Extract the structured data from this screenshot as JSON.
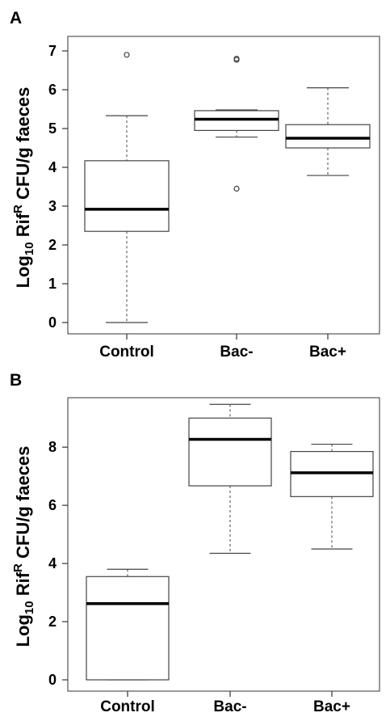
{
  "chart_data": [
    {
      "panel": "A",
      "type": "box",
      "ylabel": {
        "pre": "Log",
        "sub": "10",
        "mid": " Rif",
        "sup": "R",
        "post": " CFU/g faeces"
      },
      "xlabel": "",
      "ylim": [
        0,
        7
      ],
      "yticks": [
        "0",
        "1",
        "2",
        "3",
        "4",
        "5",
        "6",
        "7"
      ],
      "categories": [
        "Control",
        "Bac-",
        "Bac+"
      ],
      "boxes": [
        {
          "category": "Control",
          "whisker_low": 0.0,
          "q1": 2.35,
          "median": 2.92,
          "q3": 4.17,
          "whisker_high": 5.33,
          "outliers": [
            6.9
          ]
        },
        {
          "category": "Bac-",
          "whisker_low": 4.78,
          "q1": 4.95,
          "median": 5.24,
          "q3": 5.46,
          "whisker_high": 5.48,
          "outliers": [
            6.77,
            6.8,
            3.45
          ]
        },
        {
          "category": "Bac+",
          "whisker_low": 3.79,
          "q1": 4.5,
          "median": 4.75,
          "q3": 5.1,
          "whisker_high": 6.05,
          "outliers": []
        }
      ]
    },
    {
      "panel": "B",
      "type": "box",
      "ylabel": {
        "pre": "Log",
        "sub": "10",
        "mid": " Rif",
        "sup": "R",
        "post": " CFU/g faeces"
      },
      "xlabel": "",
      "ylim": [
        0,
        9.5
      ],
      "yticks": [
        "0",
        "2",
        "4",
        "6",
        "8"
      ],
      "categories": [
        "Control",
        "Bac-",
        "Bac+"
      ],
      "boxes": [
        {
          "category": "Control",
          "whisker_low": 0.0,
          "q1": 0.0,
          "median": 2.62,
          "q3": 3.55,
          "whisker_high": 3.8,
          "outliers": []
        },
        {
          "category": "Bac-",
          "whisker_low": 4.35,
          "q1": 6.67,
          "median": 8.27,
          "q3": 9.0,
          "whisker_high": 9.47,
          "outliers": []
        },
        {
          "category": "Bac+",
          "whisker_low": 4.5,
          "q1": 6.3,
          "median": 7.12,
          "q3": 7.85,
          "whisker_high": 8.1,
          "outliers": []
        }
      ]
    }
  ]
}
